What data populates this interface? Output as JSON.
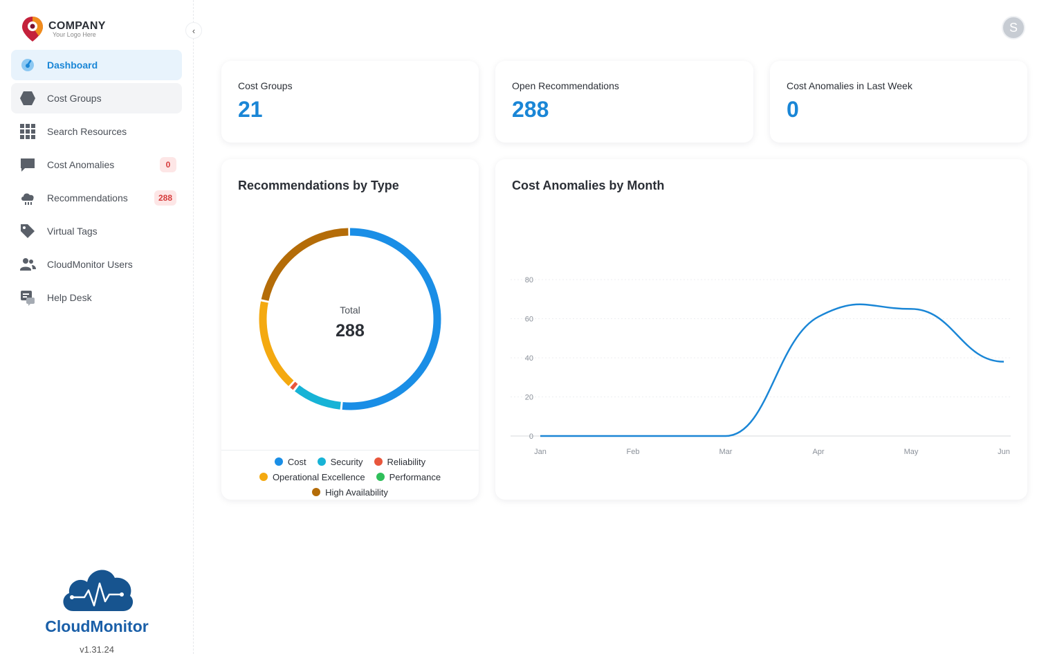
{
  "header": {
    "avatar_initial": "S"
  },
  "logo": {
    "main": "COMPANY",
    "sub": "Your Logo Here"
  },
  "sidebar": {
    "collapse_icon": "‹",
    "items": [
      {
        "label": "Dashboard",
        "icon": "dashboard-gauge-icon",
        "active": true
      },
      {
        "label": "Cost Groups",
        "icon": "hexagon-icon"
      },
      {
        "label": "Search Resources",
        "icon": "grid-icon"
      },
      {
        "label": "Cost Anomalies",
        "icon": "chat-bubble-icon",
        "badge": "0"
      },
      {
        "label": "Recommendations",
        "icon": "cloud-rain-icon",
        "badge": "288"
      },
      {
        "label": "Virtual Tags",
        "icon": "tag-icon"
      },
      {
        "label": "CloudMonitor Users",
        "icon": "users-icon"
      },
      {
        "label": "Help Desk",
        "icon": "help-desk-icon"
      }
    ]
  },
  "brand": {
    "name": "CloudMonitor",
    "version": "v1.31.24"
  },
  "stats": [
    {
      "label": "Cost Groups",
      "value": "21"
    },
    {
      "label": "Open Recommendations",
      "value": "288"
    },
    {
      "label": "Cost Anomalies in Last Week",
      "value": "0"
    }
  ],
  "colors": {
    "accent": "#1a86d6",
    "cost": "#1a8ee6",
    "security": "#17b3d6",
    "reliability": "#e8563c",
    "operational_excellence": "#f4a910",
    "performance": "#2fbf5a",
    "high_availability": "#b46c08",
    "line": "#1a86d6"
  },
  "chart_data": [
    {
      "type": "pie",
      "title": "Recommendations by Type",
      "center_label": "Total",
      "center_value": "288",
      "categories": [
        "Cost",
        "Security",
        "Reliability",
        "Operational Excellence",
        "Performance",
        "High Availability"
      ],
      "values": [
        149,
        26,
        3,
        48,
        0,
        62
      ],
      "legend_rows": [
        [
          "Cost",
          "Security",
          "Reliability"
        ],
        [
          "Operational Excellence",
          "Performance"
        ],
        [
          "High Availability"
        ]
      ]
    },
    {
      "type": "line",
      "title": "Cost Anomalies by Month",
      "x": [
        "Jan",
        "Feb",
        "Mar",
        "Apr",
        "May",
        "Jun"
      ],
      "y": [
        0,
        0,
        0,
        61,
        65,
        38
      ],
      "ylim": [
        0,
        80
      ],
      "yticks": [
        0,
        20,
        40,
        60,
        80
      ],
      "grid": true
    }
  ]
}
